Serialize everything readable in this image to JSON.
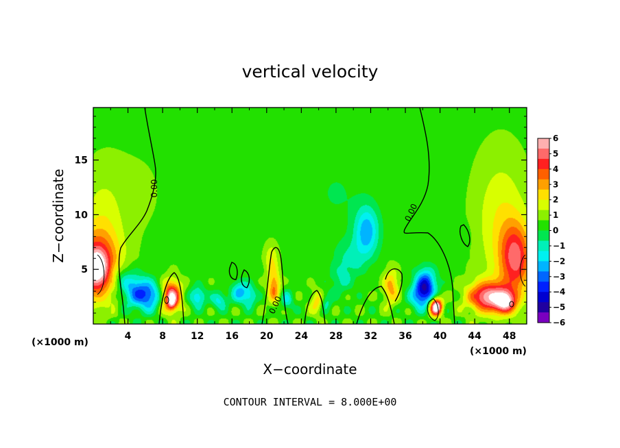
{
  "chart_data": {
    "type": "heatmap",
    "title": "vertical velocity",
    "xlabel": "X−coordinate",
    "ylabel": "Z−coordinate",
    "x_unit": "(×1000 m)",
    "z_unit": "(×1000 m)",
    "xlim": [
      0,
      50
    ],
    "zlim": [
      0,
      19.8
    ],
    "x_ticks": [
      4,
      8,
      12,
      16,
      20,
      24,
      28,
      32,
      36,
      40,
      44,
      48
    ],
    "z_ticks": [
      5,
      10,
      15
    ],
    "colorbar": {
      "ticks": [
        "6",
        "5",
        "4",
        "3",
        "2",
        "1",
        "0",
        "−1",
        "−2",
        "−3",
        "−4",
        "−5",
        "−6"
      ],
      "colors": [
        "#ffb0b0",
        "#ff6a6a",
        "#ff2020",
        "#ff6000",
        "#ffa000",
        "#ffe000",
        "#d8ff00",
        "#8cf000",
        "#22e000",
        "#00e650",
        "#00f0b8",
        "#00f0f0",
        "#00b4ff",
        "#0066ff",
        "#0020ff",
        "#0000d0",
        "#2000a0",
        "#7a00c0"
      ]
    },
    "contour_labels": [
      "0.00",
      "0.00",
      "0.00"
    ],
    "blobs": [
      {
        "x": 0.3,
        "z": 5.2,
        "w": 4,
        "sx": 2.6,
        "sz": 3.0
      },
      {
        "x": 0.3,
        "z": 5.2,
        "w": 3,
        "sx": 1.2,
        "sz": 1.6
      },
      {
        "x": 1.0,
        "z": 9.0,
        "w": 1.2,
        "sx": 2.5,
        "sz": 5.0
      },
      {
        "x": 4.8,
        "z": 3.0,
        "w": -3,
        "sx": 1.5,
        "sz": 1.5
      },
      {
        "x": 6.5,
        "z": 2.6,
        "w": -3,
        "sx": 1.3,
        "sz": 1.3
      },
      {
        "x": 3.2,
        "z": 4.2,
        "w": -1.5,
        "sx": 1.3,
        "sz": 1.2
      },
      {
        "x": 9.0,
        "z": 2.6,
        "w": 5,
        "sx": 1.1,
        "sz": 1.4
      },
      {
        "x": 9.0,
        "z": 2.0,
        "w": 2.5,
        "sx": 0.5,
        "sz": 0.7
      },
      {
        "x": 12.0,
        "z": 2.5,
        "w": -2.5,
        "sx": 0.9,
        "sz": 0.9
      },
      {
        "x": 14.5,
        "z": 2.2,
        "w": -2,
        "sx": 0.9,
        "sz": 0.8
      },
      {
        "x": 16.8,
        "z": 3.0,
        "w": -2.5,
        "sx": 0.9,
        "sz": 1.0
      },
      {
        "x": 18.0,
        "z": 2.6,
        "w": -2,
        "sx": 0.8,
        "sz": 1.0
      },
      {
        "x": 20.8,
        "z": 3.4,
        "w": 3,
        "sx": 0.7,
        "sz": 1.5
      },
      {
        "x": 20.5,
        "z": 6.0,
        "w": 1.5,
        "sx": 0.8,
        "sz": 1.4
      },
      {
        "x": 22.3,
        "z": 2.2,
        "w": -1.8,
        "sx": 0.7,
        "sz": 0.9
      },
      {
        "x": 25.8,
        "z": 2.0,
        "w": 2,
        "sx": 0.8,
        "sz": 1.1
      },
      {
        "x": 26.8,
        "z": 2.0,
        "w": -1.5,
        "sx": 0.7,
        "sz": 0.9
      },
      {
        "x": 28.5,
        "z": 4.0,
        "w": -1,
        "sx": 1.3,
        "sz": 1.3
      },
      {
        "x": 31.5,
        "z": 8.5,
        "w": -3,
        "sx": 1.4,
        "sz": 2.3
      },
      {
        "x": 29.5,
        "z": 6.0,
        "w": -1.2,
        "sx": 1.8,
        "sz": 1.8
      },
      {
        "x": 28.0,
        "z": 12.0,
        "w": -0.5,
        "sx": 3.0,
        "sz": 3.0
      },
      {
        "x": 34.3,
        "z": 3.4,
        "w": 2.5,
        "sx": 0.9,
        "sz": 1.6
      },
      {
        "x": 38.3,
        "z": 3.5,
        "w": -4.5,
        "sx": 1.2,
        "sz": 1.5
      },
      {
        "x": 37.5,
        "z": 2.5,
        "w": -2,
        "sx": 1.2,
        "sz": 1.2
      },
      {
        "x": 39.5,
        "z": 1.6,
        "w": 7,
        "sx": 0.7,
        "sz": 0.8
      },
      {
        "x": 45.5,
        "z": 2.5,
        "w": 5,
        "sx": 2.3,
        "sz": 1.4
      },
      {
        "x": 47.5,
        "z": 2.0,
        "w": 4,
        "sx": 1.2,
        "sz": 1.0
      },
      {
        "x": 48.7,
        "z": 6.0,
        "w": 4,
        "sx": 1.8,
        "sz": 3.2
      },
      {
        "x": 47.0,
        "z": 9.5,
        "w": 1.5,
        "sx": 3.0,
        "sz": 6.0
      },
      {
        "x": 42.5,
        "z": 8.0,
        "w": -0.5,
        "sx": 1.0,
        "sz": 1.2
      },
      {
        "x": 5.0,
        "z": 12.0,
        "w": 0.3,
        "sx": 4.0,
        "sz": 5.0
      }
    ]
  },
  "footer": {
    "contour_interval": "CONTOUR INTERVAL = 8.000E+00"
  }
}
